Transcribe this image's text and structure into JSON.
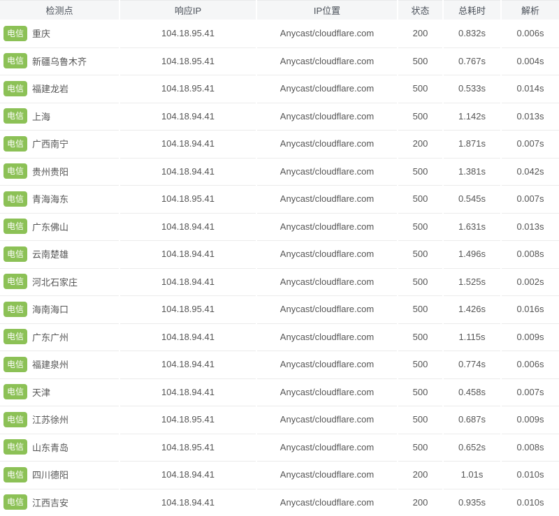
{
  "colors": {
    "header_bg": "#f5f6f7",
    "header_text": "#4a5059",
    "divider": "#ebebeb",
    "text": "#555555",
    "status_ok": "#333333",
    "status_error": "#e43d3d",
    "time_fast": "#42c142",
    "time_slow": "#b0a23c",
    "badge_bg": "#8cc156",
    "badge_text": "#ffffff"
  },
  "table": {
    "columns": [
      {
        "label": "检测点"
      },
      {
        "label": "响应IP"
      },
      {
        "label": "IP位置"
      },
      {
        "label": "状态"
      },
      {
        "label": "总耗时"
      },
      {
        "label": "解析"
      }
    ],
    "rows": [
      {
        "isp": "电信",
        "node": "重庆",
        "ip": "104.18.95.41",
        "location": "Anycast/cloudflare.com",
        "status": "200",
        "status_color": "dark",
        "total_time": "0.832s",
        "total_time_color": "green",
        "resolve_time": "0.006s"
      },
      {
        "isp": "电信",
        "node": "新疆乌鲁木齐",
        "ip": "104.18.95.41",
        "location": "Anycast/cloudflare.com",
        "status": "500",
        "status_color": "red",
        "total_time": "0.767s",
        "total_time_color": "green",
        "resolve_time": "0.004s"
      },
      {
        "isp": "电信",
        "node": "福建龙岩",
        "ip": "104.18.95.41",
        "location": "Anycast/cloudflare.com",
        "status": "500",
        "status_color": "red",
        "total_time": "0.533s",
        "total_time_color": "green",
        "resolve_time": "0.014s"
      },
      {
        "isp": "电信",
        "node": "上海",
        "ip": "104.18.94.41",
        "location": "Anycast/cloudflare.com",
        "status": "500",
        "status_color": "red",
        "total_time": "1.142s",
        "total_time_color": "olive",
        "resolve_time": "0.013s"
      },
      {
        "isp": "电信",
        "node": "广西南宁",
        "ip": "104.18.94.41",
        "location": "Anycast/cloudflare.com",
        "status": "200",
        "status_color": "dark",
        "total_time": "1.871s",
        "total_time_color": "olive",
        "resolve_time": "0.007s"
      },
      {
        "isp": "电信",
        "node": "贵州贵阳",
        "ip": "104.18.94.41",
        "location": "Anycast/cloudflare.com",
        "status": "500",
        "status_color": "red",
        "total_time": "1.381s",
        "total_time_color": "olive",
        "resolve_time": "0.042s"
      },
      {
        "isp": "电信",
        "node": "青海海东",
        "ip": "104.18.95.41",
        "location": "Anycast/cloudflare.com",
        "status": "500",
        "status_color": "red",
        "total_time": "0.545s",
        "total_time_color": "green",
        "resolve_time": "0.007s"
      },
      {
        "isp": "电信",
        "node": "广东佛山",
        "ip": "104.18.94.41",
        "location": "Anycast/cloudflare.com",
        "status": "500",
        "status_color": "red",
        "total_time": "1.631s",
        "total_time_color": "olive",
        "resolve_time": "0.013s"
      },
      {
        "isp": "电信",
        "node": "云南楚雄",
        "ip": "104.18.94.41",
        "location": "Anycast/cloudflare.com",
        "status": "500",
        "status_color": "red",
        "total_time": "1.496s",
        "total_time_color": "olive",
        "resolve_time": "0.008s"
      },
      {
        "isp": "电信",
        "node": "河北石家庄",
        "ip": "104.18.94.41",
        "location": "Anycast/cloudflare.com",
        "status": "500",
        "status_color": "red",
        "total_time": "1.525s",
        "total_time_color": "olive",
        "resolve_time": "0.002s"
      },
      {
        "isp": "电信",
        "node": "海南海口",
        "ip": "104.18.95.41",
        "location": "Anycast/cloudflare.com",
        "status": "500",
        "status_color": "red",
        "total_time": "1.426s",
        "total_time_color": "olive",
        "resolve_time": "0.016s"
      },
      {
        "isp": "电信",
        "node": "广东广州",
        "ip": "104.18.94.41",
        "location": "Anycast/cloudflare.com",
        "status": "500",
        "status_color": "red",
        "total_time": "1.115s",
        "total_time_color": "olive",
        "resolve_time": "0.009s"
      },
      {
        "isp": "电信",
        "node": "福建泉州",
        "ip": "104.18.94.41",
        "location": "Anycast/cloudflare.com",
        "status": "500",
        "status_color": "red",
        "total_time": "0.774s",
        "total_time_color": "green",
        "resolve_time": "0.006s"
      },
      {
        "isp": "电信",
        "node": "天津",
        "ip": "104.18.94.41",
        "location": "Anycast/cloudflare.com",
        "status": "500",
        "status_color": "red",
        "total_time": "0.458s",
        "total_time_color": "green",
        "resolve_time": "0.007s"
      },
      {
        "isp": "电信",
        "node": "江苏徐州",
        "ip": "104.18.95.41",
        "location": "Anycast/cloudflare.com",
        "status": "500",
        "status_color": "red",
        "total_time": "0.687s",
        "total_time_color": "green",
        "resolve_time": "0.009s"
      },
      {
        "isp": "电信",
        "node": "山东青岛",
        "ip": "104.18.95.41",
        "location": "Anycast/cloudflare.com",
        "status": "500",
        "status_color": "red",
        "total_time": "0.652s",
        "total_time_color": "green",
        "resolve_time": "0.008s"
      },
      {
        "isp": "电信",
        "node": "四川德阳",
        "ip": "104.18.94.41",
        "location": "Anycast/cloudflare.com",
        "status": "200",
        "status_color": "dark",
        "total_time": "1.01s",
        "total_time_color": "olive",
        "resolve_time": "0.010s"
      },
      {
        "isp": "电信",
        "node": "江西吉安",
        "ip": "104.18.94.41",
        "location": "Anycast/cloudflare.com",
        "status": "200",
        "status_color": "dark",
        "total_time": "0.935s",
        "total_time_color": "green",
        "resolve_time": "0.010s"
      }
    ]
  }
}
